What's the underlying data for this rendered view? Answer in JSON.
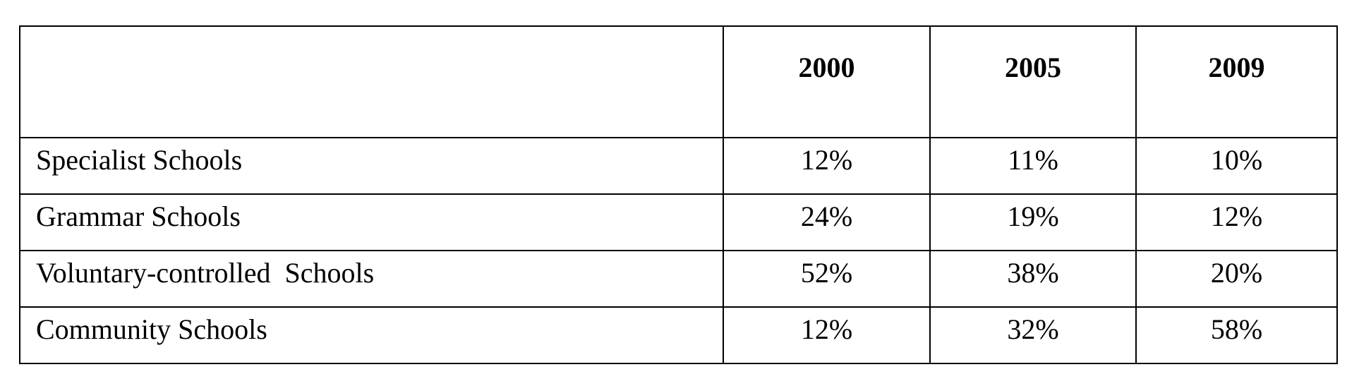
{
  "table": {
    "columns": [
      "",
      "2000",
      "2005",
      "2009"
    ],
    "rows": [
      {
        "label": "Specialist Schools",
        "values": [
          "12%",
          "11%",
          "10%"
        ]
      },
      {
        "label": "Grammar Schools",
        "values": [
          "24%",
          "19%",
          "12%"
        ]
      },
      {
        "label": "Voluntary-controlled  Schools",
        "values": [
          "52%",
          "38%",
          "20%"
        ]
      },
      {
        "label": "Community Schools",
        "values": [
          "12%",
          "32%",
          "58%"
        ]
      }
    ]
  }
}
